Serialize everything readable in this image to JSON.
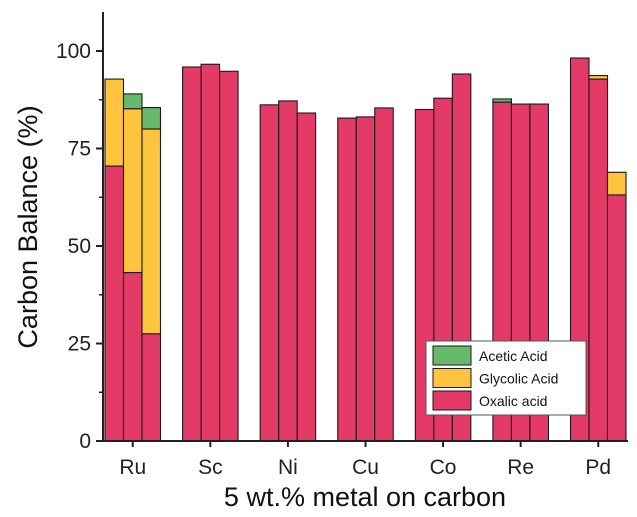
{
  "chart_data": {
    "type": "bar",
    "stacked": true,
    "xlabel": "5 wt.% metal on carbon",
    "ylabel": "Carbon Balance (%)",
    "ylim": [
      0,
      110
    ],
    "yticks": [
      0,
      25,
      50,
      75,
      100
    ],
    "grid": false,
    "legend_position": "bottom-right",
    "groups": [
      {
        "label": "Ru",
        "bars": [
          {
            "oxalic": 70.5,
            "glycolic": 22.3,
            "acetic": 0
          },
          {
            "oxalic": 43.2,
            "glycolic": 42.0,
            "acetic": 3.8
          },
          {
            "oxalic": 27.5,
            "glycolic": 52.5,
            "acetic": 5.5
          }
        ]
      },
      {
        "label": "Sc",
        "bars": [
          {
            "oxalic": 95.9,
            "glycolic": 0,
            "acetic": 0
          },
          {
            "oxalic": 96.6,
            "glycolic": 0,
            "acetic": 0
          },
          {
            "oxalic": 94.8,
            "glycolic": 0,
            "acetic": 0
          }
        ]
      },
      {
        "label": "Ni",
        "bars": [
          {
            "oxalic": 86.2,
            "glycolic": 0,
            "acetic": 0
          },
          {
            "oxalic": 87.2,
            "glycolic": 0,
            "acetic": 0
          },
          {
            "oxalic": 84.1,
            "glycolic": 0,
            "acetic": 0
          }
        ]
      },
      {
        "label": "Cu",
        "bars": [
          {
            "oxalic": 82.8,
            "glycolic": 0,
            "acetic": 0
          },
          {
            "oxalic": 83.1,
            "glycolic": 0,
            "acetic": 0
          },
          {
            "oxalic": 85.4,
            "glycolic": 0,
            "acetic": 0
          }
        ]
      },
      {
        "label": "Co",
        "bars": [
          {
            "oxalic": 85.0,
            "glycolic": 0,
            "acetic": 0
          },
          {
            "oxalic": 87.9,
            "glycolic": 0,
            "acetic": 0
          },
          {
            "oxalic": 94.1,
            "glycolic": 0,
            "acetic": 0
          }
        ]
      },
      {
        "label": "Re",
        "bars": [
          {
            "oxalic": 86.9,
            "glycolic": 0,
            "acetic": 0.8
          },
          {
            "oxalic": 86.4,
            "glycolic": 0,
            "acetic": 0
          },
          {
            "oxalic": 86.4,
            "glycolic": 0,
            "acetic": 0
          }
        ]
      },
      {
        "label": "Pd",
        "bars": [
          {
            "oxalic": 98.2,
            "glycolic": 0,
            "acetic": 0
          },
          {
            "oxalic": 92.8,
            "glycolic": 0.9,
            "acetic": 0
          },
          {
            "oxalic": 63.1,
            "glycolic": 5.8,
            "acetic": 0
          }
        ]
      }
    ],
    "series": [
      {
        "key": "oxalic",
        "name": "Oxalic acid",
        "color": "#e43a67"
      },
      {
        "key": "glycolic",
        "name": "Glycolic Acid",
        "color": "#fec43e"
      },
      {
        "key": "acetic",
        "name": "Acetic Acid",
        "color": "#66b86a"
      }
    ],
    "legend_order": [
      "acetic",
      "glycolic",
      "oxalic"
    ]
  }
}
